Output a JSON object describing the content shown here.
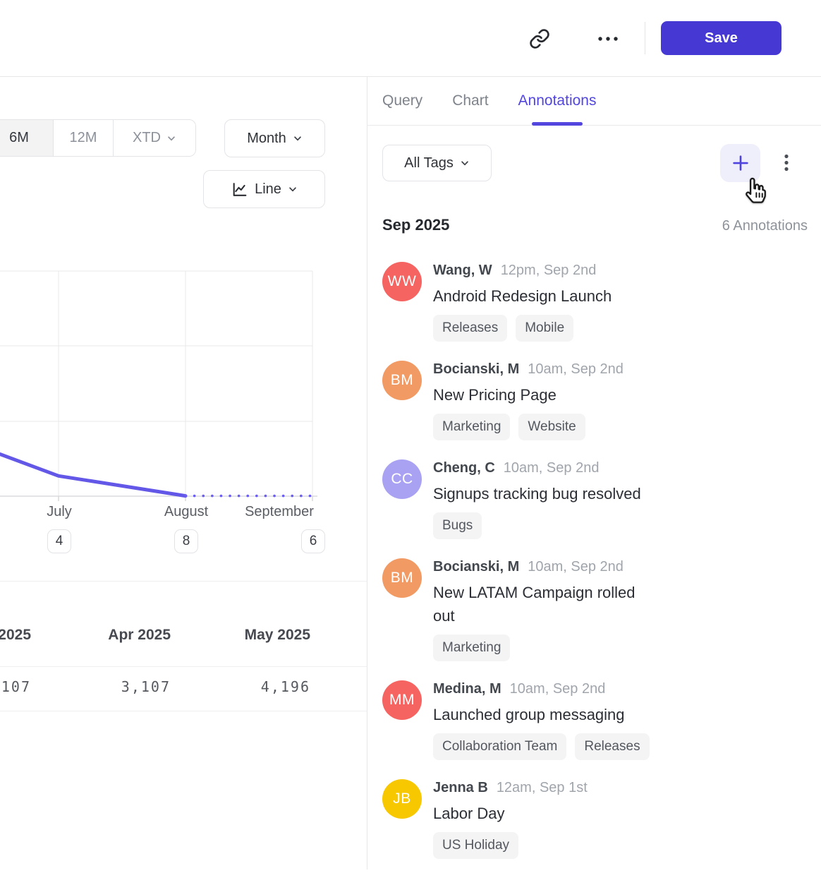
{
  "colors": {
    "accent": "#5246DE",
    "save_button_bg": "#4638D2",
    "chart_line": "#6357E8",
    "plus_button_bg": "#EFEEFB",
    "tag_chip_bg": "#F4F4F5",
    "border": "#E5E5E8"
  },
  "icons": {
    "link-icon": "chain link glyph",
    "ellipsis-icon": "three horizontal dots",
    "kebab-icon": "three vertical dots",
    "plus-icon": "plus sign",
    "chevron-down-icon": "small down chevron",
    "line-chart-icon": "mini line chart with axis",
    "hand-cursor-icon": "pointing hand mouse cursor"
  },
  "header": {
    "save_label": "Save"
  },
  "tabs": [
    {
      "label": "Query",
      "active": false
    },
    {
      "label": "Chart",
      "active": false
    },
    {
      "label": "Annotations",
      "active": true
    }
  ],
  "chart_panel": {
    "range_buttons": [
      {
        "label": "6M",
        "active": true,
        "chevron": false
      },
      {
        "label": "12M",
        "active": false,
        "chevron": false
      },
      {
        "label": "XTD",
        "active": false,
        "chevron": true
      }
    ],
    "interval_label": "Month",
    "chart_type_label": "Line"
  },
  "chart_data": {
    "type": "line",
    "x_labels": [
      "July",
      "August",
      "September"
    ],
    "annotation_count_badges": [
      4,
      8,
      6
    ],
    "y_axis_labels_visible": false,
    "gridlines": "3 horizontal rows above x-axis, vertical gridline per month, y-axis cropped off left edge",
    "line_color": "#6357E8",
    "series": [
      {
        "name": "actual",
        "style": "solid",
        "points": [
          {
            "x": "left-edge",
            "y_units": 0.56
          },
          {
            "x": "July",
            "y_units": 0.27
          },
          {
            "x": "August",
            "y_units": 0.004
          }
        ]
      },
      {
        "name": "projection",
        "style": "dotted",
        "points": [
          {
            "x": "August",
            "y_units": 0.004
          },
          {
            "x": "September",
            "y_units": 0.004
          }
        ]
      }
    ]
  },
  "table": {
    "columns": [
      {
        "header": "2025",
        "value": "107"
      },
      {
        "header": "Apr 2025",
        "value": "3,107"
      },
      {
        "header": "May 2025",
        "value": "4,196"
      }
    ]
  },
  "annotations_panel": {
    "filter_button_label": "All Tags",
    "month_header": "Sep 2025",
    "count_label": "6 Annotations",
    "entries": [
      {
        "initials": "WW",
        "avatar_color": "#F56461",
        "name": "Wang, W",
        "timestamp": "12pm, Sep 2nd",
        "title": "Android Redesign Launch",
        "tags": [
          "Releases",
          "Mobile"
        ]
      },
      {
        "initials": "BM",
        "avatar_color": "#F29A63",
        "name": "Bocianski, M",
        "timestamp": "10am, Sep 2nd",
        "title": "New Pricing Page",
        "tags": [
          "Marketing",
          "Website"
        ]
      },
      {
        "initials": "CC",
        "avatar_color": "#A9A2F2",
        "name": "Cheng, C",
        "timestamp": "10am, Sep 2nd",
        "title": "Signups tracking bug resolved",
        "tags": [
          "Bugs"
        ]
      },
      {
        "initials": "BM",
        "avatar_color": "#F29A63",
        "name": "Bocianski, M",
        "timestamp": "10am, Sep 2nd",
        "title": "New LATAM Campaign rolled out",
        "tags": [
          "Marketing"
        ]
      },
      {
        "initials": "MM",
        "avatar_color": "#F56461",
        "name": "Medina, M",
        "timestamp": "10am, Sep 2nd",
        "title": "Launched group messaging",
        "tags": [
          "Collaboration Team",
          "Releases"
        ]
      },
      {
        "initials": "JB",
        "avatar_color": "#F7C800",
        "name": "Jenna B",
        "timestamp": "12am, Sep 1st",
        "title": "Labor Day",
        "tags": [
          "US Holiday"
        ]
      }
    ]
  }
}
